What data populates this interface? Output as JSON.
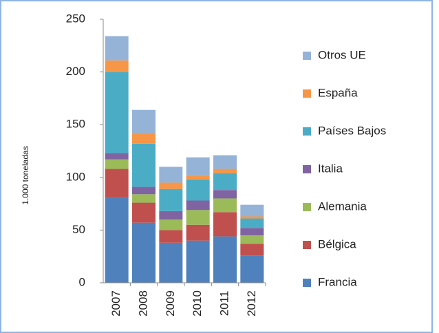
{
  "chart_data": {
    "type": "stacked_bar",
    "ylabel": "1.000 toneladas",
    "categories": [
      "2007",
      "2008",
      "2009",
      "2010",
      "2011",
      "2012"
    ],
    "series": [
      {
        "name": "Francia",
        "color": "#4f81bd",
        "values": [
          81,
          57,
          38,
          40,
          44,
          26
        ]
      },
      {
        "name": "Bélgica",
        "color": "#c0504d",
        "values": [
          27,
          19,
          12,
          15,
          23,
          11
        ]
      },
      {
        "name": "Alemania",
        "color": "#9bbb59",
        "values": [
          9,
          8,
          10,
          14,
          13,
          8
        ]
      },
      {
        "name": "Italia",
        "color": "#8064a2",
        "values": [
          6,
          7,
          8,
          9,
          8,
          7
        ]
      },
      {
        "name": "Países Bajos",
        "color": "#4bacc6",
        "values": [
          77,
          41,
          21,
          20,
          16,
          9
        ]
      },
      {
        "name": "España",
        "color": "#f79646",
        "values": [
          11,
          10,
          6,
          4,
          4,
          2
        ]
      },
      {
        "name": "Otros UE",
        "color": "#95b3d7",
        "values": [
          23,
          22,
          15,
          17,
          13,
          11
        ]
      }
    ],
    "ylim": [
      0,
      250
    ],
    "yticks": [
      0,
      50,
      100,
      150,
      200,
      250
    ],
    "legend": "right"
  }
}
